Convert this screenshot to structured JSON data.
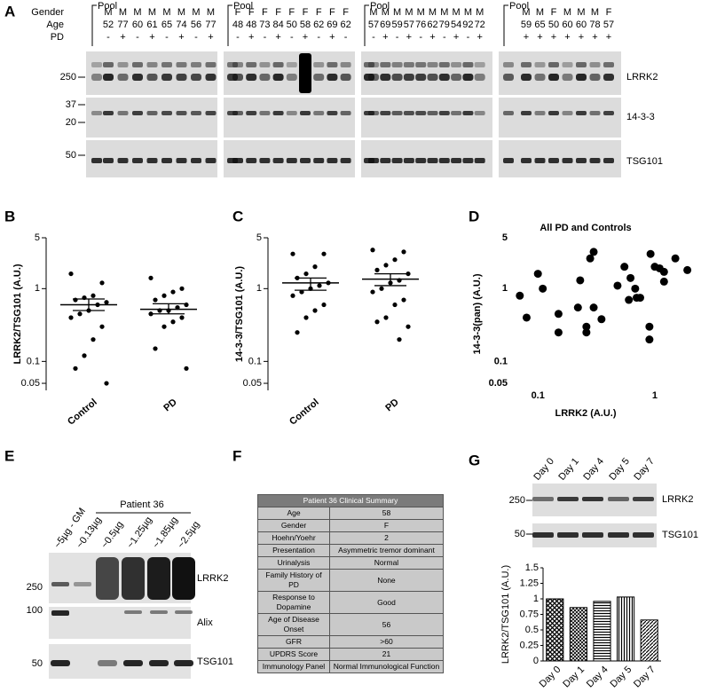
{
  "panel_labels": [
    "A",
    "B",
    "C",
    "D",
    "E",
    "F",
    "G"
  ],
  "blot_a": {
    "row_labels": [
      "Gender",
      "Age",
      "PD"
    ],
    "pool_label": "Pool",
    "groups": [
      {
        "gender": [
          "M",
          "M",
          "M",
          "M",
          "M",
          "M",
          "M",
          "M"
        ],
        "age": [
          52,
          77,
          60,
          61,
          65,
          74,
          56,
          77
        ],
        "pd": [
          "-",
          "+",
          "-",
          "+",
          "-",
          "+",
          "-",
          "+"
        ]
      },
      {
        "gender": [
          "F",
          "F",
          "F",
          "F",
          "F",
          "F",
          "F",
          "F",
          "F"
        ],
        "age": [
          48,
          48,
          73,
          84,
          50,
          58,
          62,
          69,
          62
        ],
        "pd": [
          "-",
          "+",
          "-",
          "+",
          "-",
          "+",
          "-",
          "+",
          "-"
        ]
      },
      {
        "gender": [
          "M",
          "M",
          "M",
          "M",
          "M",
          "M",
          "M",
          "M",
          "M",
          "M"
        ],
        "age": [
          57,
          69,
          59,
          57,
          76,
          62,
          79,
          54,
          92,
          72
        ],
        "pd": [
          "-",
          "+",
          "-",
          "+",
          "-",
          "+",
          "-",
          "+",
          "-",
          "+"
        ]
      },
      {
        "gender": [
          "M",
          "M",
          "F",
          "M",
          "M",
          "M",
          "F"
        ],
        "age": [
          59,
          65,
          50,
          60,
          60,
          78,
          57
        ],
        "pd": [
          "+",
          "+",
          "+",
          "+",
          "+",
          "+",
          "+"
        ]
      }
    ],
    "markers": [
      "250",
      "37",
      "20",
      "50"
    ],
    "bands": [
      "LRRK2",
      "14-3-3",
      "TSG101"
    ]
  },
  "chart_data": [
    {
      "type": "dot_plot",
      "y_label": "LRRK2/TSG101 (A.U.)",
      "categories": [
        "Control",
        "PD"
      ],
      "values": [
        [
          1.6,
          1.2,
          0.8,
          0.75,
          0.7,
          0.65,
          0.6,
          0.5,
          0.45,
          0.4,
          0.3,
          0.2,
          0.12,
          0.08,
          0.05
        ],
        [
          1.4,
          1.0,
          0.9,
          0.8,
          0.7,
          0.6,
          0.55,
          0.5,
          0.5,
          0.45,
          0.4,
          0.35,
          0.3,
          0.15,
          0.08
        ]
      ],
      "means": [
        0.6,
        0.52
      ],
      "error_low": [
        0.5,
        0.45
      ],
      "error_high": [
        0.72,
        0.62
      ],
      "log_y": true,
      "ylim": [
        0.04,
        5
      ],
      "yticks": [
        0.05,
        0.1,
        1,
        5
      ],
      "color": "#000000"
    },
    {
      "type": "dot_plot",
      "y_label": "14-3-3/TSG101 (A.U.)",
      "categories": [
        "Control",
        "PD"
      ],
      "values": [
        [
          3,
          3,
          2,
          1.6,
          1.4,
          1.2,
          1.1,
          1,
          0.9,
          0.8,
          0.6,
          0.5,
          0.4,
          0.25
        ],
        [
          3.4,
          3.2,
          2.5,
          2.1,
          1.8,
          1.6,
          1.3,
          1.2,
          1,
          0.9,
          0.7,
          0.6,
          0.4,
          0.35,
          0.3,
          0.2
        ]
      ],
      "means": [
        1.2,
        1.35
      ],
      "error_low": [
        0.95,
        1.1
      ],
      "error_high": [
        1.4,
        1.6
      ],
      "log_y": true,
      "ylim": [
        0.04,
        5
      ],
      "yticks": [
        0.05,
        0.1,
        1,
        5
      ],
      "color": "#000000"
    },
    {
      "type": "scatter",
      "title": "All PD and Controls",
      "x_label": "LRRK2 (A.U.)",
      "y_label": "14-3-3(pan) (A.U.)",
      "x": [
        0.07,
        0.08,
        0.1,
        0.11,
        0.15,
        0.15,
        0.22,
        0.23,
        0.26,
        0.26,
        0.28,
        0.3,
        0.3,
        0.35,
        0.48,
        0.55,
        0.6,
        0.62,
        0.68,
        0.7,
        0.75,
        0.9,
        0.92,
        0.9,
        1.0,
        1.1,
        1.2,
        1.2,
        1.5,
        1.9
      ],
      "values": [
        0.8,
        0.4,
        1.6,
        1,
        0.45,
        0.25,
        0.55,
        1.3,
        0.3,
        0.25,
        2.6,
        3.2,
        0.55,
        0.38,
        1.1,
        2,
        0.7,
        1.4,
        1,
        0.75,
        0.75,
        0.3,
        3,
        0.2,
        2.0,
        1.9,
        1.25,
        1.7,
        2.6,
        1.8
      ],
      "log_x": true,
      "log_y": true,
      "xlim": [
        0.06,
        2.2
      ],
      "ylim": [
        0.04,
        5
      ],
      "xticks": [
        0.1,
        1
      ],
      "yticks": [
        0.05,
        0.1,
        1,
        5
      ],
      "color": "#000000"
    },
    {
      "type": "bar",
      "y_label": "LRRK2/TSG101 (A.U.)",
      "categories": [
        "Day 0",
        "Day 1",
        "Day 4",
        "Day 5",
        "Day 7"
      ],
      "values": [
        1.0,
        0.86,
        0.96,
        1.03,
        0.66
      ],
      "ylim": [
        0,
        1.5
      ],
      "yticks": [
        0,
        0.25,
        0.5,
        0.75,
        1,
        1.25,
        1.5
      ],
      "color": "#000000"
    }
  ],
  "blot_e": {
    "group_label": "Patient 36",
    "lanes": [
      "~5µg - GM",
      "~0.13µg",
      "~0.5µg",
      "~1.25µg",
      "~1.85µg",
      "~2.5µg"
    ],
    "markers": [
      "250",
      "100",
      "50"
    ],
    "bands": [
      "LRRK2",
      "Alix",
      "TSG101"
    ]
  },
  "table_f": {
    "title": "Patient 36 Clinical Summary",
    "rows": [
      [
        "Age",
        "58"
      ],
      [
        "Gender",
        "F"
      ],
      [
        "Hoehn/Yoehr",
        "2"
      ],
      [
        "Presentation",
        "Asymmetric tremor dominant"
      ],
      [
        "Urinalysis",
        "Normal"
      ],
      [
        "Family History of PD",
        "None"
      ],
      [
        "Response to Dopamine",
        "Good"
      ],
      [
        "Age of Disease Onset",
        "56"
      ],
      [
        "GFR",
        ">60"
      ],
      [
        "UPDRS Score",
        "21"
      ],
      [
        "Immunology Panel",
        "Normal Immunological Function"
      ]
    ]
  },
  "blot_g": {
    "lanes": [
      "Day 0",
      "Day 1",
      "Day 4",
      "Day 5",
      "Day 7"
    ],
    "markers": [
      "250",
      "50"
    ],
    "bands": [
      "LRRK2",
      "TSG101"
    ]
  }
}
